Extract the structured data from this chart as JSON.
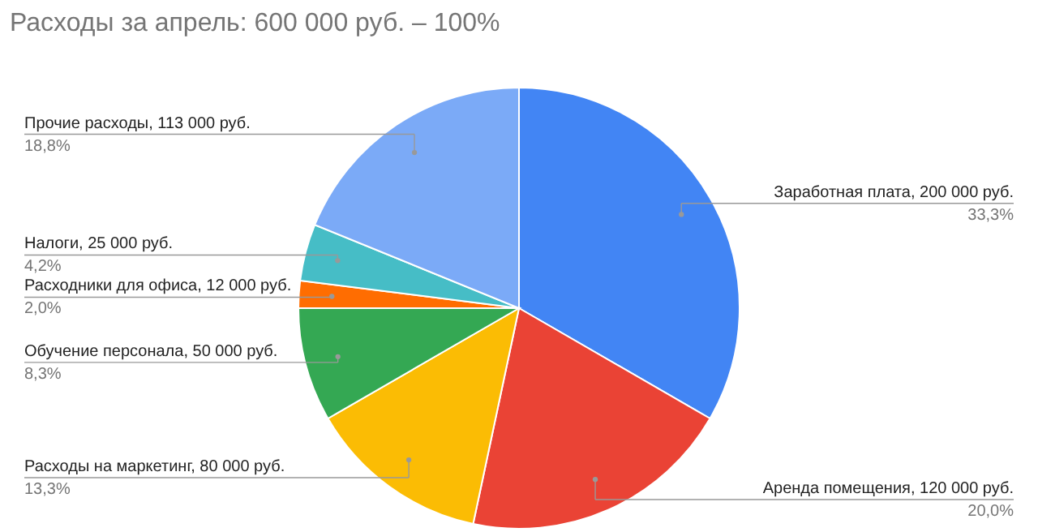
{
  "chart_data": {
    "type": "pie",
    "title": "Расходы за апрель: 600 000 руб. – 100%",
    "categories": [
      "Заработная плата",
      "Аренда помещения",
      "Расходы на маркетинг",
      "Обучение персонала",
      "Расходники для офиса",
      "Налоги",
      "Прочие расходы"
    ],
    "values": [
      200000,
      120000,
      80000,
      50000,
      12000,
      25000,
      113000
    ],
    "colors": [
      "#4285f4",
      "#ea4335",
      "#fbbc04",
      "#34a853",
      "#ff6d01",
      "#46bdc6",
      "#7baaf7"
    ],
    "value_labels": [
      "200 000 руб.",
      "120 000 руб.",
      "80 000 руб.",
      "50 000 руб.",
      "12 000 руб.",
      "25 000 руб.",
      "113 000 руб."
    ],
    "annotations": [
      {
        "text": "33,3%",
        "x": "Заработная плата"
      },
      {
        "text": "20,0%",
        "x": "Аренда помещения"
      },
      {
        "text": "13,3%",
        "x": "Расходы на маркетинг"
      },
      {
        "text": "8,3%",
        "x": "Обучение персонала"
      },
      {
        "text": "2,0%",
        "x": "Расходники для офиса"
      },
      {
        "text": "4,2%",
        "x": "Налоги"
      },
      {
        "text": "18,8%",
        "x": "Прочие расходы"
      }
    ]
  }
}
